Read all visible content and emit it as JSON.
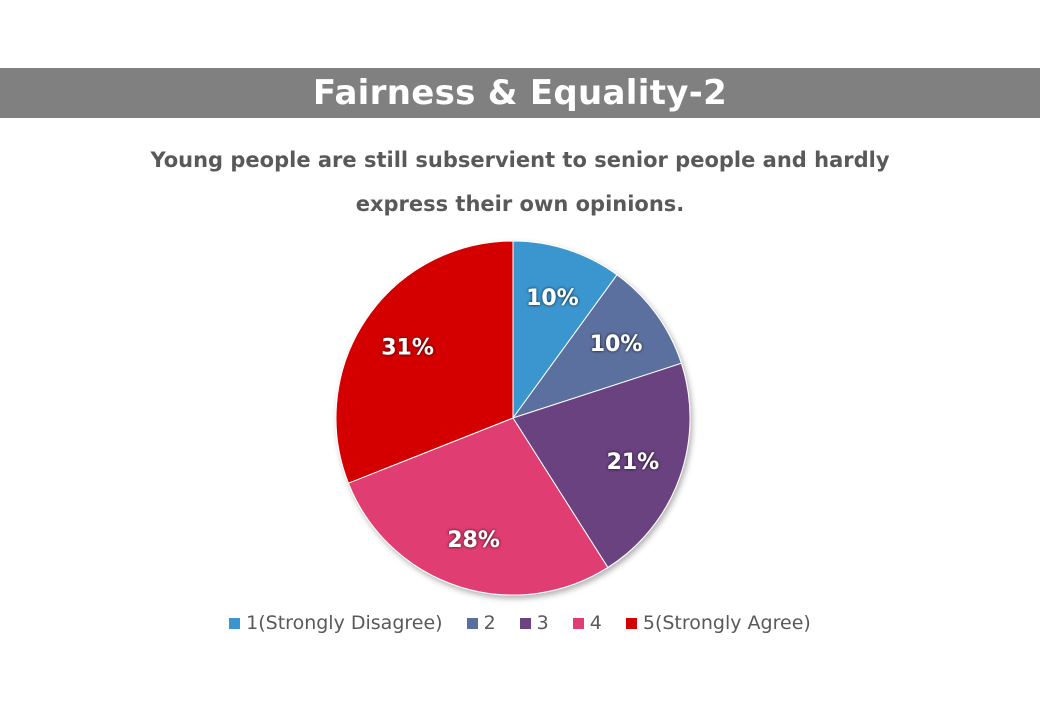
{
  "header": {
    "title": "Fairness & Equality-2"
  },
  "chart_data": {
    "type": "pie",
    "title": "Young people are still subservient to senior people and hardly express their own opinions.",
    "categories": [
      "1(Strongly Disagree)",
      "2",
      "3",
      "4",
      "5(Strongly Agree)"
    ],
    "values": [
      10,
      10,
      21,
      28,
      31
    ],
    "labels": [
      "10%",
      "10%",
      "21%",
      "28%",
      "31%"
    ],
    "unit": "%",
    "colors": [
      "#3B96D0",
      "#5B6F9F",
      "#6A4380",
      "#E03E72",
      "#D40000"
    ],
    "start_angle": "12 o'clock",
    "direction": "clockwise",
    "legend_position": "bottom"
  }
}
